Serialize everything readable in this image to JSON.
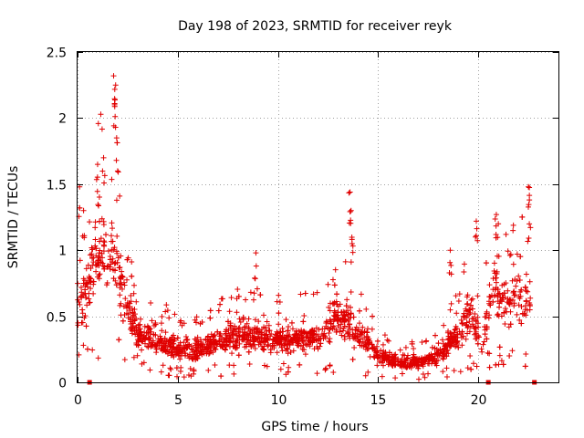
{
  "chart_data": {
    "type": "scatter",
    "title": "Day 198 of 2023, SRMTID for receiver reyk",
    "xlabel": "GPS time / hours",
    "ylabel": "SRMTID / TECUs",
    "xlim": [
      0,
      24
    ],
    "ylim": [
      0,
      2.5
    ],
    "grid": true,
    "marker_color": "#e00000",
    "x_ticks": [
      0,
      5,
      10,
      15,
      20
    ],
    "y_ticks": [
      0,
      0.5,
      1,
      1.5,
      2,
      2.5
    ],
    "x_tick_labels": [
      "0",
      "5",
      "10",
      "15",
      "20"
    ],
    "y_tick_labels": [
      "0",
      "0.5",
      "1",
      "1.5",
      "2",
      "2.5"
    ],
    "envelope": [
      {
        "x": 0.0,
        "y": 0.62
      },
      {
        "x": 0.5,
        "y": 0.7
      },
      {
        "x": 1.0,
        "y": 1.0
      },
      {
        "x": 1.5,
        "y": 1.0
      },
      {
        "x": 2.0,
        "y": 0.85
      },
      {
        "x": 2.5,
        "y": 0.55
      },
      {
        "x": 3.0,
        "y": 0.35
      },
      {
        "x": 4.0,
        "y": 0.32
      },
      {
        "x": 5.0,
        "y": 0.25
      },
      {
        "x": 6.0,
        "y": 0.25
      },
      {
        "x": 7.0,
        "y": 0.3
      },
      {
        "x": 8.0,
        "y": 0.35
      },
      {
        "x": 9.0,
        "y": 0.35
      },
      {
        "x": 10.0,
        "y": 0.33
      },
      {
        "x": 11.0,
        "y": 0.33
      },
      {
        "x": 12.0,
        "y": 0.35
      },
      {
        "x": 13.0,
        "y": 0.5
      },
      {
        "x": 13.5,
        "y": 0.45
      },
      {
        "x": 14.0,
        "y": 0.35
      },
      {
        "x": 14.5,
        "y": 0.3
      },
      {
        "x": 15.0,
        "y": 0.2
      },
      {
        "x": 16.0,
        "y": 0.15
      },
      {
        "x": 17.0,
        "y": 0.15
      },
      {
        "x": 18.0,
        "y": 0.2
      },
      {
        "x": 19.0,
        "y": 0.35
      },
      {
        "x": 19.7,
        "y": 0.55
      },
      {
        "x": 20.2,
        "y": 0.3
      },
      {
        "x": 20.8,
        "y": 0.75
      },
      {
        "x": 21.5,
        "y": 0.55
      },
      {
        "x": 22.0,
        "y": 0.65
      },
      {
        "x": 22.6,
        "y": 0.65
      }
    ],
    "spikes": [
      {
        "x": 0.1,
        "y": 1.48
      },
      {
        "x": 0.3,
        "y": 1.3
      },
      {
        "x": 1.0,
        "y": 1.65
      },
      {
        "x": 1.3,
        "y": 1.7
      },
      {
        "x": 1.8,
        "y": 2.32
      },
      {
        "x": 1.9,
        "y": 2.25
      },
      {
        "x": 1.85,
        "y": 2.1
      },
      {
        "x": 1.95,
        "y": 1.85
      },
      {
        "x": 2.0,
        "y": 1.6
      },
      {
        "x": 8.9,
        "y": 0.98
      },
      {
        "x": 13.6,
        "y": 1.44
      },
      {
        "x": 13.65,
        "y": 1.3
      },
      {
        "x": 13.7,
        "y": 1.05
      },
      {
        "x": 18.6,
        "y": 1.0
      },
      {
        "x": 19.9,
        "y": 1.22
      },
      {
        "x": 20.9,
        "y": 1.27
      },
      {
        "x": 21.0,
        "y": 1.2
      },
      {
        "x": 22.5,
        "y": 1.48
      },
      {
        "x": 22.55,
        "y": 1.38
      }
    ],
    "data_gap_markers": [
      {
        "x": 0.6,
        "y": 0
      },
      {
        "x": 20.5,
        "y": 0
      },
      {
        "x": 22.8,
        "y": 0
      }
    ]
  }
}
